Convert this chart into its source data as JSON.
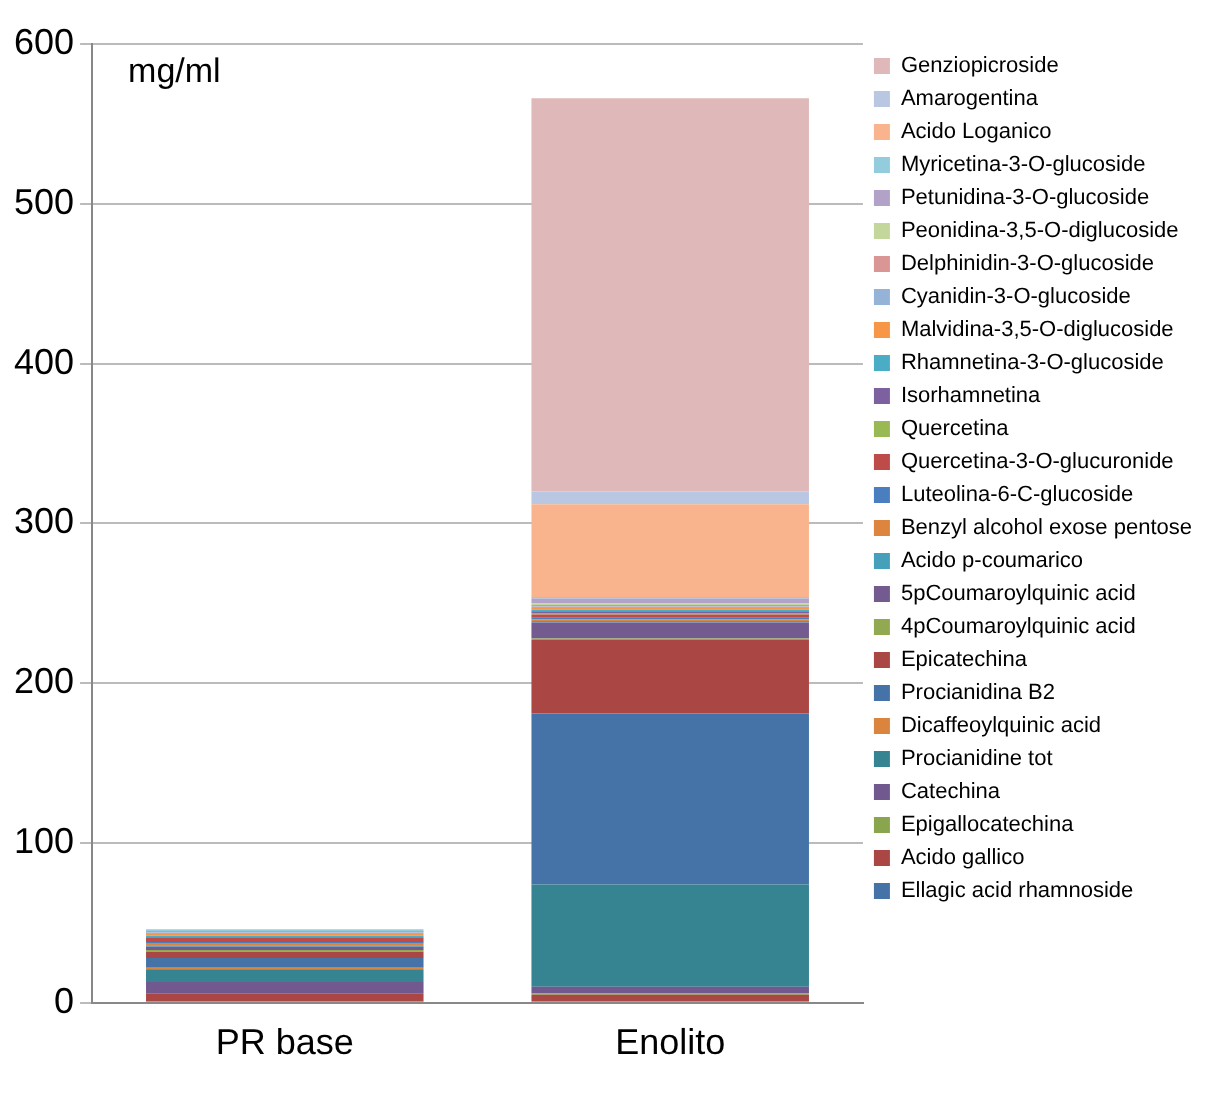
{
  "chart_data": {
    "type": "bar",
    "stacked": true,
    "ylabel": "mg/ml",
    "categories": [
      "PR base",
      "Enolito"
    ],
    "ylim": [
      0,
      600
    ],
    "yticks": [
      0,
      100,
      200,
      300,
      400,
      500,
      600
    ],
    "grid": "y",
    "legend": "right",
    "series": [
      {
        "name": "Ellagic acid rhamnoside",
        "color": "#4572a7",
        "values": [
          1,
          1
        ]
      },
      {
        "name": "Acido gallico",
        "color": "#aa4643",
        "values": [
          5,
          4
        ]
      },
      {
        "name": "Epigallocatechina",
        "color": "#89a54e",
        "values": [
          0,
          1
        ]
      },
      {
        "name": "Catechina",
        "color": "#71588f",
        "values": [
          7,
          4
        ]
      },
      {
        "name": "Procianidine tot",
        "color": "#368391",
        "values": [
          8,
          64
        ]
      },
      {
        "name": "Dicaffeoylquinic acid",
        "color": "#db843d",
        "values": [
          1,
          0
        ]
      },
      {
        "name": "Procianidina B2",
        "color": "#4673a7",
        "values": [
          6,
          107
        ]
      },
      {
        "name": "Epicatechina",
        "color": "#aa4644",
        "values": [
          4,
          46
        ]
      },
      {
        "name": "4pCoumaroylquinic acid",
        "color": "#93a951",
        "values": [
          1,
          1
        ]
      },
      {
        "name": "5pCoumaroylquinic acid",
        "color": "#735a8f",
        "values": [
          2,
          10
        ]
      },
      {
        "name": "Acido p-coumarico",
        "color": "#47a0b9",
        "values": [
          1,
          1
        ]
      },
      {
        "name": "Benzyl alcohol exose pentose",
        "color": "#dc853f",
        "values": [
          1,
          1
        ]
      },
      {
        "name": "Luteolina-6-C-glucoside",
        "color": "#4a7ebf",
        "values": [
          1,
          1
        ]
      },
      {
        "name": "Quercetina-3-O-glucuronide",
        "color": "#be4b48",
        "values": [
          3,
          2
        ]
      },
      {
        "name": "Quercetina",
        "color": "#98b954",
        "values": [
          0,
          1
        ]
      },
      {
        "name": "Isorhamnetina",
        "color": "#7d60a0",
        "values": [
          0,
          1
        ]
      },
      {
        "name": "Rhamnetina-3-O-glucoside",
        "color": "#4bacc6",
        "values": [
          1,
          1
        ]
      },
      {
        "name": "Malvidina-3,5-O-diglucoside",
        "color": "#f79646",
        "values": [
          1,
          1
        ]
      },
      {
        "name": "Cyanidin-3-O-glucoside",
        "color": "#95b3d7",
        "values": [
          1,
          1
        ]
      },
      {
        "name": "Delphinidin-3-O-glucoside",
        "color": "#d99694",
        "values": [
          0,
          1
        ]
      },
      {
        "name": "Peonidina-3,5-O-diglucoside",
        "color": "#c3d69b",
        "values": [
          0,
          1
        ]
      },
      {
        "name": "Petunidina-3-O-glucoside",
        "color": "#b3a2c7",
        "values": [
          1,
          3
        ]
      },
      {
        "name": "Myricetina-3-O-glucoside",
        "color": "#93cddd",
        "values": [
          1,
          1
        ]
      },
      {
        "name": "Acido Loganico",
        "color": "#f9b48e",
        "values": [
          0,
          58
        ]
      },
      {
        "name": "Amarogentina",
        "color": "#b9c7e3",
        "values": [
          0,
          8
        ]
      },
      {
        "name": "Genziopicroside",
        "color": "#dfb9b9",
        "values": [
          0,
          246
        ]
      }
    ]
  }
}
